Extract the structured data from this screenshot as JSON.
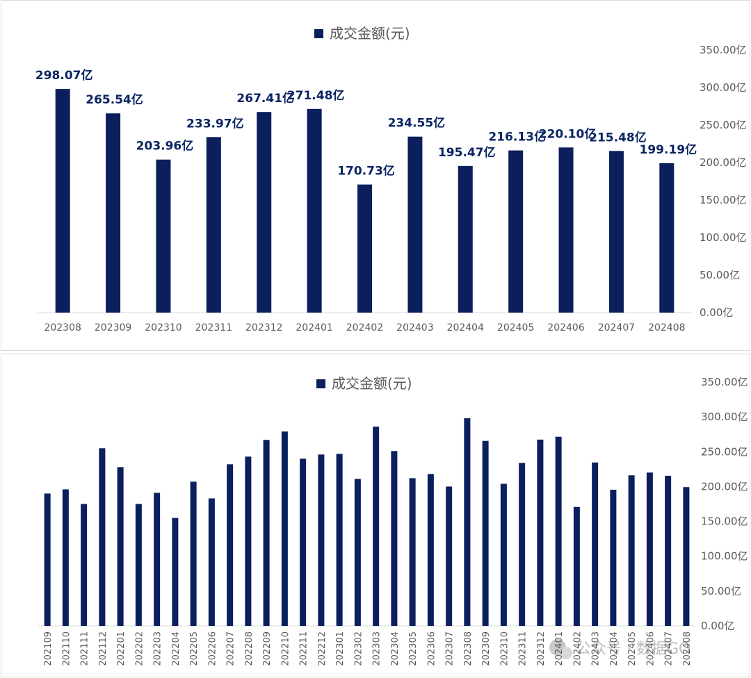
{
  "chart_data": [
    {
      "type": "bar",
      "legend": "成交金额(元)",
      "legend_position": "top",
      "color": "#0a1f5c",
      "categories": [
        "202308",
        "202309",
        "202310",
        "202311",
        "202312",
        "202401",
        "202402",
        "202403",
        "202404",
        "202405",
        "202406",
        "202407",
        "202408"
      ],
      "values": [
        298.07,
        265.54,
        203.96,
        233.97,
        267.41,
        271.48,
        170.73,
        234.55,
        195.47,
        216.13,
        220.1,
        215.48,
        199.19
      ],
      "data_labels": [
        "298.07亿",
        "265.54亿",
        "203.96亿",
        "233.97亿",
        "267.41亿",
        "271.48亿",
        "170.73亿",
        "234.55亿",
        "195.47亿",
        "216.13亿",
        "220.10亿",
        "215.48亿",
        "199.19亿"
      ],
      "yticks": [
        "0.00亿",
        "50.00亿",
        "100.00亿",
        "150.00亿",
        "200.00亿",
        "250.00亿",
        "300.00亿",
        "350.00亿"
      ],
      "ylim": [
        0,
        350
      ],
      "yaxis_side": "right",
      "grid": false
    },
    {
      "type": "bar",
      "legend": "成交金额(元)",
      "legend_position": "top",
      "color": "#0a1f5c",
      "categories": [
        "202109",
        "202110",
        "202111",
        "202112",
        "202201",
        "202202",
        "202203",
        "202204",
        "202205",
        "202206",
        "202207",
        "202208",
        "202209",
        "202210",
        "202211",
        "202212",
        "202301",
        "202302",
        "202303",
        "202304",
        "202305",
        "202306",
        "202307",
        "202308",
        "202309",
        "202310",
        "202311",
        "202312",
        "202401",
        "202402",
        "202403",
        "202404",
        "202405",
        "202406",
        "202407",
        "202408"
      ],
      "values": [
        190,
        196,
        175,
        255,
        228,
        175,
        191,
        155,
        207,
        183,
        232,
        243,
        267,
        279,
        240,
        246,
        247,
        211,
        286,
        251,
        212,
        218,
        200,
        298.07,
        265.54,
        203.96,
        233.97,
        267.41,
        271.48,
        170.73,
        234.55,
        195.47,
        216.13,
        220.1,
        215.48,
        199.19
      ],
      "yticks": [
        "0.00亿",
        "50.00亿",
        "100.00亿",
        "150.00亿",
        "200.00亿",
        "250.00亿",
        "300.00亿",
        "350.00亿"
      ],
      "ylim": [
        0,
        350
      ],
      "yaxis_side": "right",
      "grid": false
    }
  ],
  "watermark": {
    "icon": "wechat-icon",
    "text": "公众号 · 数据GO"
  }
}
